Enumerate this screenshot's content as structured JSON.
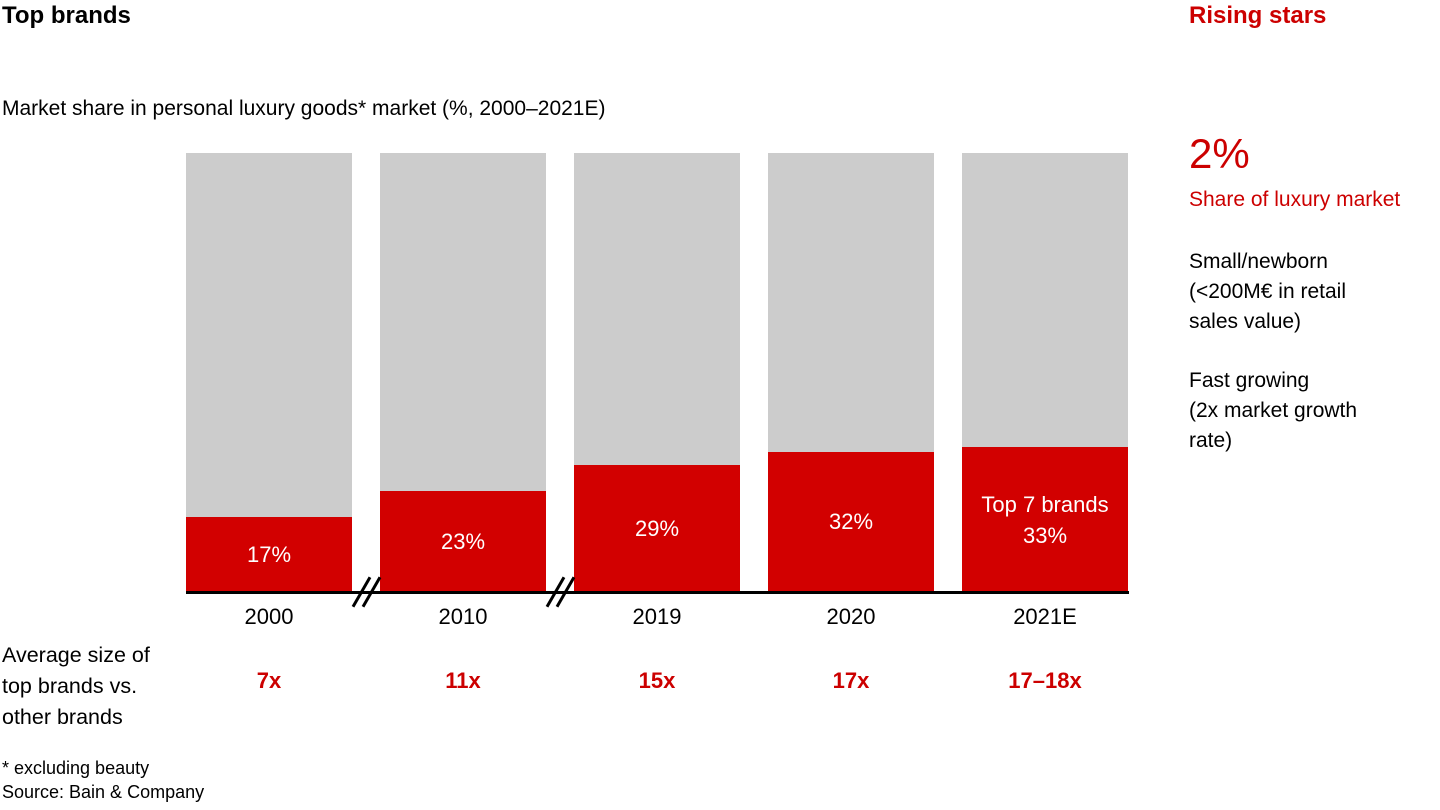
{
  "header": {
    "title": "Top brands",
    "right_title": "Rising stars"
  },
  "colors": {
    "brand_red": "#cc0000",
    "bar_red": "#d20000",
    "bar_gray": "#cccccc",
    "bar_label_white": "#ffffff",
    "text_black": "#000000"
  },
  "chart_data": {
    "type": "bar",
    "stacked": true,
    "title": "Market share in personal luxury goods* market (%, 2000–2021E)",
    "categories": [
      "2000",
      "2010",
      "2019",
      "2020",
      "2021E"
    ],
    "series": [
      {
        "name": "Top 7 brands",
        "color": "#d20000",
        "values": [
          17,
          23,
          29,
          32,
          33
        ]
      },
      {
        "name": "Other brands",
        "color": "#cccccc",
        "values": [
          83,
          77,
          71,
          68,
          67
        ]
      }
    ],
    "bar_labels": [
      "17%",
      "23%",
      "29%",
      "32%",
      "Top 7 brands\n33%"
    ],
    "ylim": [
      0,
      100
    ],
    "grid": false,
    "legend": "none",
    "axis_breaks_before_category_index": [
      1,
      2
    ],
    "avg_row": {
      "label": "Average size of\ntop brands vs.\nother brands",
      "values": [
        "7x",
        "11x",
        "15x",
        "17x",
        "17–18x"
      ]
    }
  },
  "rising_stars": {
    "stat": "2%",
    "stat_label": "Share of luxury market",
    "point1": "Small/newborn\n(<200M€ in retail\nsales value)",
    "point2": "Fast growing\n(2x market growth\nrate)"
  },
  "footnotes": [
    "* excluding beauty",
    "Source: Bain & Company"
  ]
}
